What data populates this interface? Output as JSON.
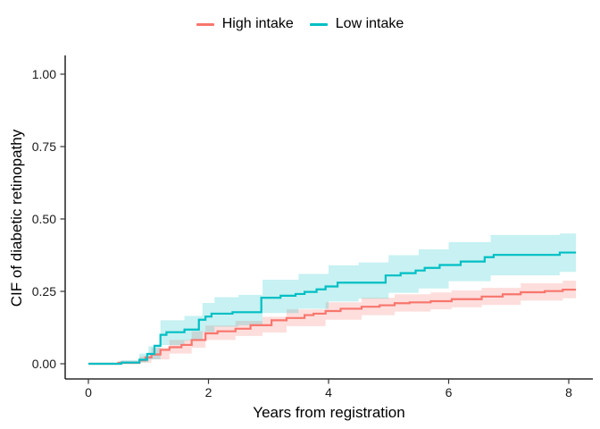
{
  "figure": {
    "background": "#ffffff"
  },
  "chart_data": {
    "type": "line",
    "subtype": "cumulative-incidence-step-curves-with-ci-bands",
    "title": "",
    "xlabel": "Years from registration",
    "ylabel": "CIF of diabetic retinopathy",
    "xlim": [
      0,
      8
    ],
    "ylim": [
      0,
      1
    ],
    "x_ticks": [
      0,
      2,
      4,
      6,
      8
    ],
    "x_tick_labels": [
      "0",
      "2",
      "4",
      "6",
      "8"
    ],
    "y_ticks": [
      0,
      0.25,
      0.5,
      0.75,
      1
    ],
    "y_tick_labels": [
      "0.00",
      "0.25",
      "0.50",
      "0.75",
      "1.00"
    ],
    "grid": false,
    "legend_position": "top-center",
    "axis_color": "#000000",
    "tick_text_color": "#1a1a1a",
    "series": [
      {
        "name": "High intake",
        "color": "#F8766D",
        "band_opacity": 0.24,
        "steps": [
          [
            0,
            0
          ],
          [
            0.5,
            0.003
          ],
          [
            0.85,
            0.012
          ],
          [
            0.95,
            0.022
          ],
          [
            1.05,
            0.032
          ],
          [
            1.2,
            0.048
          ],
          [
            1.35,
            0.057
          ],
          [
            1.55,
            0.065
          ],
          [
            1.72,
            0.082
          ],
          [
            1.95,
            0.105
          ],
          [
            2.15,
            0.112
          ],
          [
            2.45,
            0.121
          ],
          [
            2.7,
            0.133
          ],
          [
            3.05,
            0.15
          ],
          [
            3.3,
            0.158
          ],
          [
            3.6,
            0.168
          ],
          [
            3.75,
            0.173
          ],
          [
            3.95,
            0.182
          ],
          [
            4.2,
            0.19
          ],
          [
            4.55,
            0.197
          ],
          [
            4.85,
            0.202
          ],
          [
            5.1,
            0.209
          ],
          [
            5.35,
            0.212
          ],
          [
            5.7,
            0.216
          ],
          [
            6.05,
            0.223
          ],
          [
            6.55,
            0.232
          ],
          [
            6.9,
            0.24
          ],
          [
            7.2,
            0.247
          ],
          [
            7.6,
            0.251
          ],
          [
            7.9,
            0.256
          ],
          [
            8.12,
            0.256
          ]
        ],
        "ci_band": [
          [
            0,
            0,
            0
          ],
          [
            0.5,
            0,
            0.01
          ],
          [
            0.85,
            0.004,
            0.025
          ],
          [
            1.05,
            0.015,
            0.055
          ],
          [
            1.35,
            0.035,
            0.082
          ],
          [
            1.72,
            0.055,
            0.112
          ],
          [
            1.95,
            0.082,
            0.132
          ],
          [
            2.45,
            0.096,
            0.148
          ],
          [
            2.9,
            0.108,
            0.162
          ],
          [
            3.3,
            0.13,
            0.188
          ],
          [
            3.95,
            0.152,
            0.212
          ],
          [
            4.55,
            0.168,
            0.228
          ],
          [
            5.1,
            0.18,
            0.24
          ],
          [
            5.7,
            0.188,
            0.246
          ],
          [
            6.05,
            0.195,
            0.253
          ],
          [
            6.55,
            0.203,
            0.262
          ],
          [
            7.2,
            0.218,
            0.278
          ],
          [
            7.9,
            0.226,
            0.287
          ],
          [
            8.12,
            0.226,
            0.287
          ]
        ]
      },
      {
        "name": "Low intake",
        "color": "#00BFC4",
        "band_opacity": 0.22,
        "steps": [
          [
            0,
            0
          ],
          [
            0.55,
            0.004
          ],
          [
            0.85,
            0.014
          ],
          [
            0.98,
            0.034
          ],
          [
            1.1,
            0.062
          ],
          [
            1.2,
            0.1
          ],
          [
            1.3,
            0.109
          ],
          [
            1.6,
            0.118
          ],
          [
            1.84,
            0.152
          ],
          [
            1.95,
            0.163
          ],
          [
            2.05,
            0.173
          ],
          [
            2.4,
            0.178
          ],
          [
            2.88,
            0.228
          ],
          [
            3.2,
            0.235
          ],
          [
            3.45,
            0.241
          ],
          [
            3.6,
            0.248
          ],
          [
            3.8,
            0.257
          ],
          [
            3.95,
            0.267
          ],
          [
            4.15,
            0.28
          ],
          [
            4.95,
            0.305
          ],
          [
            5.2,
            0.313
          ],
          [
            5.45,
            0.322
          ],
          [
            5.6,
            0.331
          ],
          [
            5.85,
            0.341
          ],
          [
            6.2,
            0.353
          ],
          [
            6.6,
            0.368
          ],
          [
            6.75,
            0.376
          ],
          [
            7.85,
            0.384
          ],
          [
            8.12,
            0.384
          ]
        ],
        "ci_band": [
          [
            0,
            0,
            0
          ],
          [
            0.55,
            0,
            0.012
          ],
          [
            0.85,
            0.005,
            0.035
          ],
          [
            1.0,
            0.015,
            0.06
          ],
          [
            1.2,
            0.065,
            0.15
          ],
          [
            1.6,
            0.08,
            0.165
          ],
          [
            1.9,
            0.11,
            0.21
          ],
          [
            2.1,
            0.128,
            0.23
          ],
          [
            2.5,
            0.133,
            0.238
          ],
          [
            2.9,
            0.175,
            0.29
          ],
          [
            3.5,
            0.19,
            0.31
          ],
          [
            4.0,
            0.215,
            0.34
          ],
          [
            4.5,
            0.225,
            0.35
          ],
          [
            5.0,
            0.245,
            0.375
          ],
          [
            5.5,
            0.26,
            0.395
          ],
          [
            6.0,
            0.285,
            0.42
          ],
          [
            6.7,
            0.305,
            0.445
          ],
          [
            7.85,
            0.317,
            0.45
          ],
          [
            8.12,
            0.317,
            0.452
          ]
        ]
      }
    ]
  }
}
